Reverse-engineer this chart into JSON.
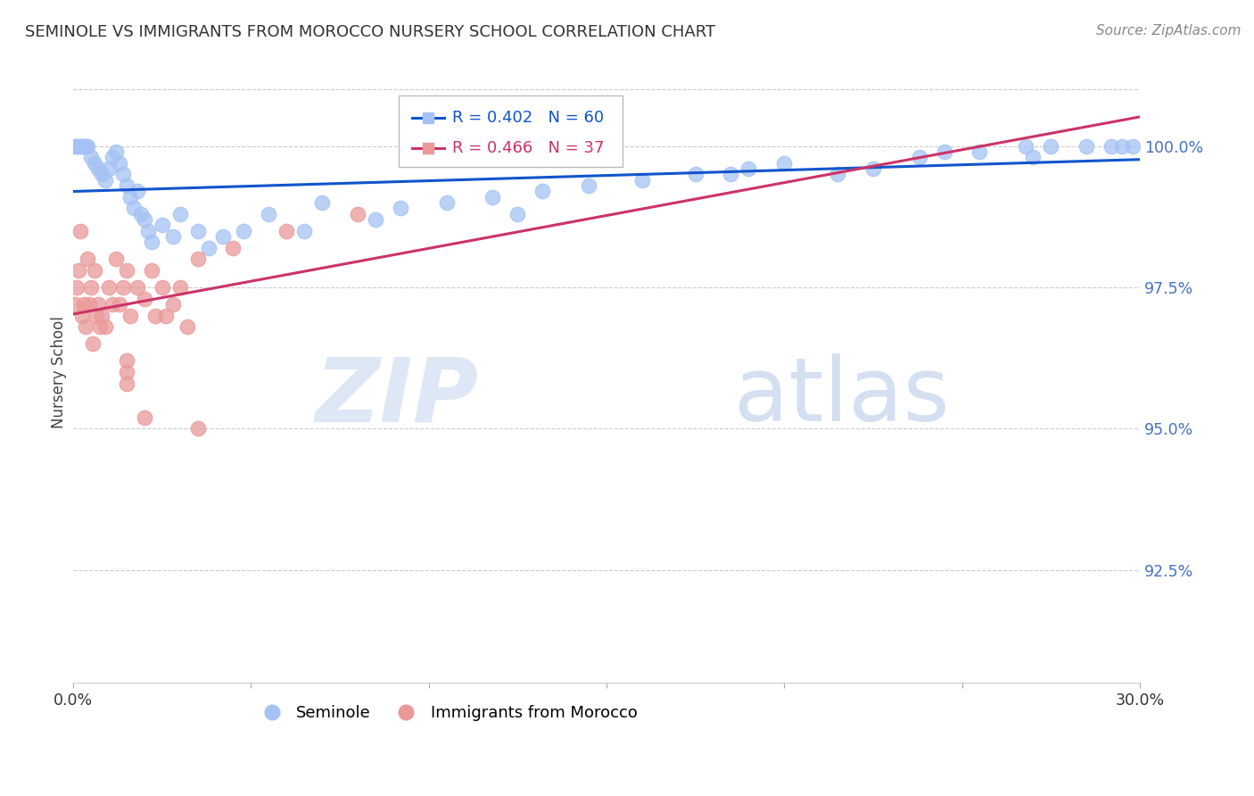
{
  "title": "SEMINOLE VS IMMIGRANTS FROM MOROCCO NURSERY SCHOOL CORRELATION CHART",
  "source": "Source: ZipAtlas.com",
  "xlabel": "",
  "ylabel": "Nursery School",
  "xmin": 0.0,
  "xmax": 30.0,
  "ymin": 90.5,
  "ymax": 101.5,
  "yticks": [
    92.5,
    95.0,
    97.5,
    100.0
  ],
  "ytick_labels": [
    "92.5%",
    "95.0%",
    "97.5%",
    "100.0%"
  ],
  "xticks": [
    0.0,
    5.0,
    10.0,
    15.0,
    20.0,
    25.0,
    30.0
  ],
  "xtick_labels": [
    "0.0%",
    "",
    "",
    "",
    "",
    "",
    "30.0%"
  ],
  "seminole_color": "#a4c2f4",
  "morocco_color": "#ea9999",
  "seminole_line_color": "#1155cc",
  "morocco_line_color": "#cc3366",
  "legend_seminole": "Seminole",
  "legend_morocco": "Immigrants from Morocco",
  "seminole_R": 0.402,
  "seminole_N": 60,
  "morocco_R": 0.466,
  "morocco_N": 37,
  "seminole_x": [
    0.05,
    0.1,
    0.15,
    0.2,
    0.25,
    0.3,
    0.35,
    0.4,
    0.5,
    0.6,
    0.7,
    0.8,
    0.9,
    1.0,
    1.1,
    1.2,
    1.3,
    1.4,
    1.5,
    1.6,
    1.7,
    1.8,
    1.9,
    2.0,
    2.1,
    2.2,
    2.5,
    2.8,
    3.0,
    3.5,
    3.8,
    4.2,
    4.8,
    5.5,
    6.5,
    7.0,
    8.5,
    9.2,
    10.5,
    11.8,
    12.5,
    13.2,
    14.5,
    16.0,
    17.5,
    19.0,
    20.0,
    21.5,
    22.5,
    23.8,
    24.5,
    25.5,
    26.8,
    27.5,
    28.5,
    29.2,
    29.5,
    29.8,
    18.5,
    27.0
  ],
  "seminole_y": [
    100.0,
    100.0,
    100.0,
    100.0,
    100.0,
    100.0,
    100.0,
    100.0,
    99.8,
    99.7,
    99.6,
    99.5,
    99.4,
    99.6,
    99.8,
    99.9,
    99.7,
    99.5,
    99.3,
    99.1,
    98.9,
    99.2,
    98.8,
    98.7,
    98.5,
    98.3,
    98.6,
    98.4,
    98.8,
    98.5,
    98.2,
    98.4,
    98.5,
    98.8,
    98.5,
    99.0,
    98.7,
    98.9,
    99.0,
    99.1,
    98.8,
    99.2,
    99.3,
    99.4,
    99.5,
    99.6,
    99.7,
    99.5,
    99.6,
    99.8,
    99.9,
    99.9,
    100.0,
    100.0,
    100.0,
    100.0,
    100.0,
    100.0,
    99.5,
    99.8
  ],
  "morocco_x": [
    0.05,
    0.1,
    0.15,
    0.2,
    0.25,
    0.3,
    0.4,
    0.5,
    0.6,
    0.7,
    0.8,
    0.9,
    1.0,
    1.1,
    1.2,
    1.5,
    1.8,
    2.0,
    2.2,
    2.5,
    2.8,
    3.0,
    3.5,
    1.3,
    1.6,
    0.35,
    0.45,
    0.55,
    0.65,
    0.75,
    1.4,
    2.3,
    4.5,
    6.0,
    8.0,
    3.2,
    2.6
  ],
  "morocco_y": [
    97.2,
    97.5,
    97.8,
    98.5,
    97.0,
    97.2,
    98.0,
    97.5,
    97.8,
    97.2,
    97.0,
    96.8,
    97.5,
    97.2,
    98.0,
    97.8,
    97.5,
    97.3,
    97.8,
    97.5,
    97.2,
    97.5,
    98.0,
    97.2,
    97.0,
    96.8,
    97.2,
    96.5,
    97.0,
    96.8,
    97.5,
    97.0,
    98.2,
    98.5,
    98.8,
    96.8,
    97.0
  ],
  "morocco_outlier_x": [
    1.5,
    1.5,
    1.5,
    2.0,
    3.5
  ],
  "morocco_outlier_y": [
    96.2,
    96.0,
    95.8,
    95.2,
    95.0
  ],
  "watermark_zip": "ZIP",
  "watermark_atlas": "atlas",
  "background_color": "#ffffff",
  "grid_color": "#cccccc"
}
